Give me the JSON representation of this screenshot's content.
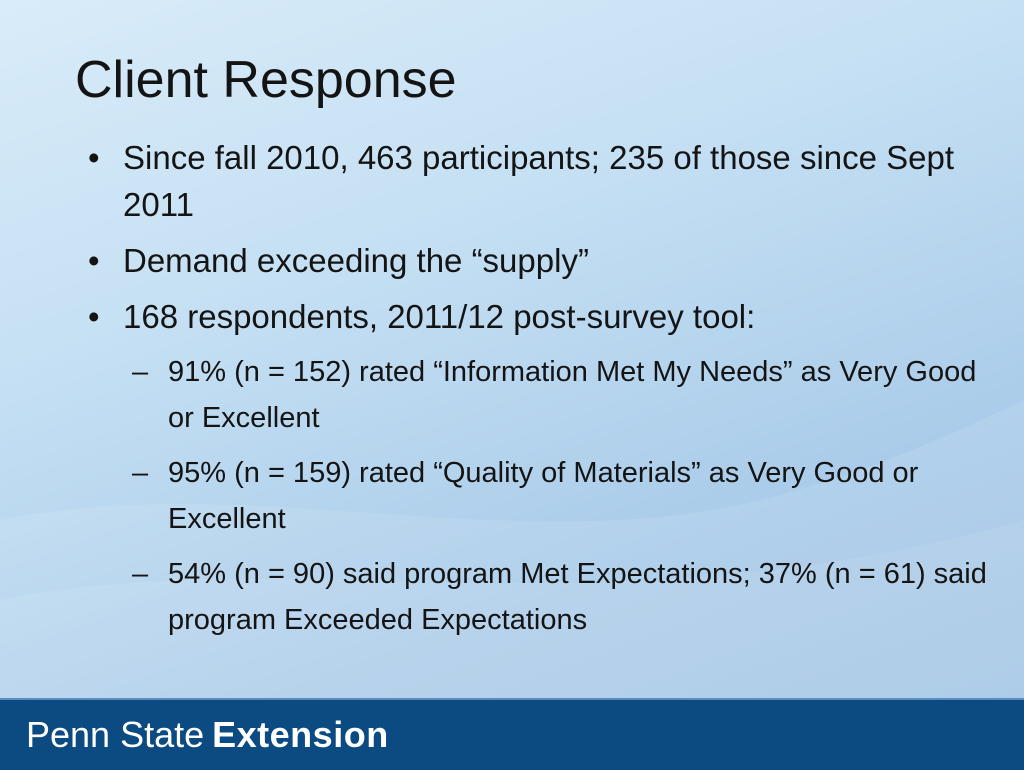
{
  "slide": {
    "title": "Client Response",
    "bullets": [
      {
        "text": "Since fall 2010, 463 participants; 235 of those since Sept 2011"
      },
      {
        "text": "Demand exceeding the “supply”"
      },
      {
        "text": "168 respondents, 2011/12 post-survey tool:"
      }
    ],
    "sub_bullets": [
      {
        "text": "91% (n = 152) rated “Information Met My Needs” as Very Good or Excellent"
      },
      {
        "text": "95% (n = 159) rated “Quality of Materials” as Very Good or Excellent"
      },
      {
        "text": "54% (n = 90) said program Met Expectations; 37% (n = 61) said program Exceeded Expectations"
      }
    ],
    "bullet_symbol": "•",
    "dash_symbol": "–"
  },
  "footer": {
    "brand_light": "Penn State",
    "brand_bold": "Extension",
    "background_color": "#0c4a82"
  }
}
